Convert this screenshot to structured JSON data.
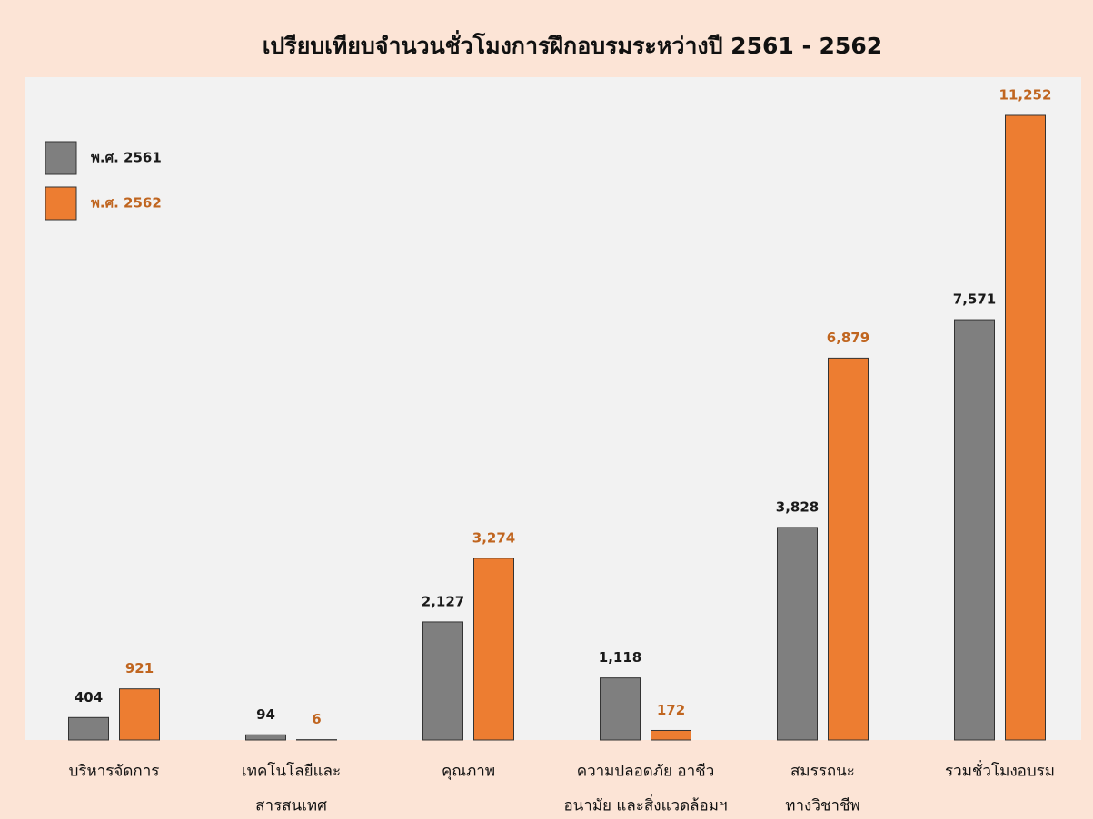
{
  "chart_data": {
    "type": "bar",
    "title": "เปรียบเทียบจำนวนชั่วโมงการฝึกอบรมระหว่างปี 2561 - 2562",
    "categories": [
      [
        "บริหารจัดการ"
      ],
      [
        "เทคโนโลยีและ",
        "สารสนเทศ"
      ],
      [
        "คุณภาพ"
      ],
      [
        "ความปลอดภัย อาชีว",
        "อนามัย และสิ่งแวดล้อมฯ"
      ],
      [
        "สมรรถนะ",
        "ทางวิชาชีพ"
      ],
      [
        "รวมชั่วโมงอบรม"
      ]
    ],
    "series": [
      {
        "name": "พ.ศ. 2561",
        "color": "#7f7f7f",
        "label_color": "#1a1a1a",
        "values": [
          404,
          94,
          2127,
          1118,
          3828,
          7571
        ],
        "value_labels": [
          "404",
          "94",
          "2,127",
          "1,118",
          "3,828",
          "7,571"
        ]
      },
      {
        "name": "พ.ศ. 2562",
        "color": "#ed7d31",
        "label_color": "#c0651f",
        "values": [
          921,
          6,
          3274,
          172,
          6879,
          11252
        ],
        "value_labels": [
          "921",
          "6",
          "3,274",
          "172",
          "6,879",
          "11,252"
        ]
      }
    ],
    "legend": "top-left"
  }
}
